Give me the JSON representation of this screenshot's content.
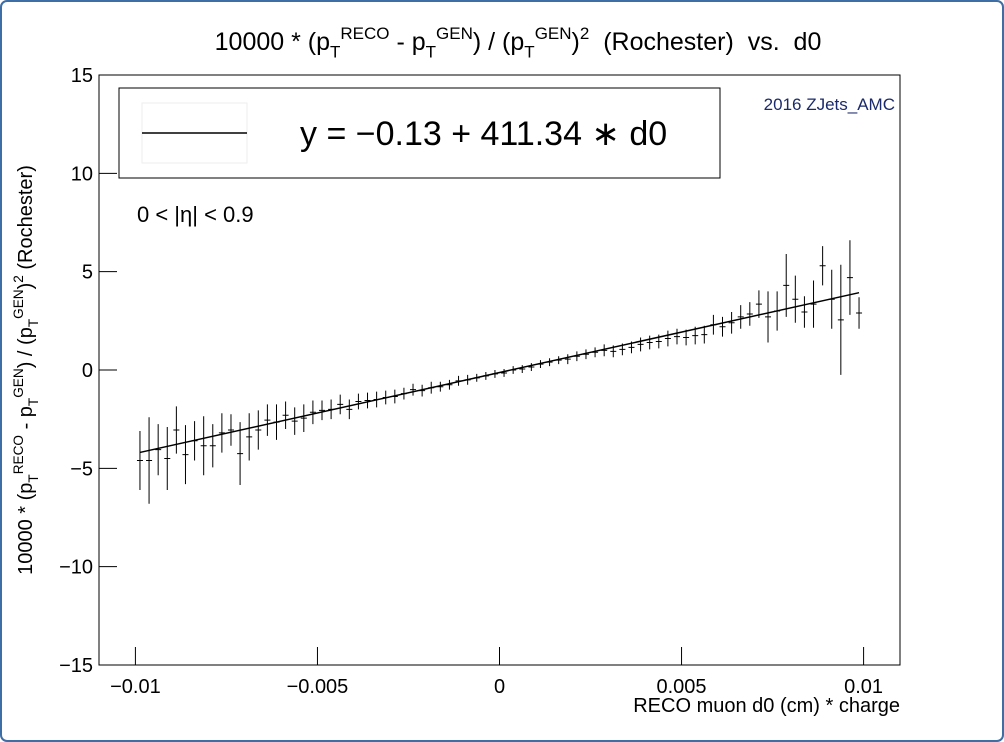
{
  "chart_data": {
    "type": "errorbar",
    "title_parts": [
      {
        "t": "10000 * (p"
      },
      {
        "t": "T",
        "s": "sub"
      },
      {
        "t": "RECO",
        "s": "sup"
      },
      {
        "t": " - p"
      },
      {
        "t": "T",
        "s": "sub"
      },
      {
        "t": "GEN",
        "s": "sup"
      },
      {
        "t": ") / (p"
      },
      {
        "t": "T",
        "s": "sub"
      },
      {
        "t": "GEN",
        "s": "sup"
      },
      {
        "t": ")"
      },
      {
        "t": "2",
        "s": "sup"
      },
      {
        "t": "  (Rochester)  vs.  d0"
      }
    ],
    "y_label_parts": [
      {
        "t": "10000 * (p"
      },
      {
        "t": "T",
        "s": "sub"
      },
      {
        "t": "RECO",
        "s": "sup"
      },
      {
        "t": " - p"
      },
      {
        "t": "T",
        "s": "sub"
      },
      {
        "t": "GEN",
        "s": "sup"
      },
      {
        "t": ") / (p"
      },
      {
        "t": "T",
        "s": "sub"
      },
      {
        "t": "GEN",
        "s": "sup"
      },
      {
        "t": ")"
      },
      {
        "t": "2",
        "s": "sup"
      },
      {
        "t": " (Rochester)"
      }
    ],
    "x_label": "RECO muon d0 (cm) * charge",
    "annotations": [
      "0 < |η| < 0.9",
      "2016 ZJets_AMC"
    ],
    "fit": {
      "label": "y = −0.13 + 411.34 ∗ d0",
      "intercept": -0.13,
      "slope": 411.34,
      "color": "#000000"
    },
    "xlim": [
      -0.011,
      0.011
    ],
    "ylim": [
      -15,
      15
    ],
    "xticks": [
      {
        "value": -0.01,
        "label": "−0.01"
      },
      {
        "value": -0.005,
        "label": "−0.005"
      },
      0,
      0.005,
      0.01
    ],
    "yticks": [
      {
        "value": -15,
        "label": "−15"
      },
      {
        "value": -10,
        "label": "−10"
      },
      {
        "value": -5,
        "label": "−5"
      },
      0,
      5,
      10,
      15
    ],
    "x": [
      -0.009875,
      -0.009625,
      -0.009375,
      -0.009125,
      -0.008875,
      -0.008625,
      -0.008375,
      -0.008125,
      -0.007875,
      -0.007625,
      -0.007375,
      -0.007125,
      -0.006875,
      -0.006625,
      -0.006375,
      -0.006125,
      -0.005875,
      -0.005625,
      -0.005375,
      -0.005125,
      -0.004875,
      -0.004625,
      -0.004375,
      -0.004125,
      -0.003875,
      -0.003625,
      -0.003375,
      -0.003125,
      -0.002875,
      -0.002625,
      -0.002375,
      -0.002125,
      -0.001875,
      -0.001625,
      -0.001375,
      -0.001125,
      -0.000875,
      -0.000625,
      -0.000375,
      -0.000125,
      0.000125,
      0.000375,
      0.000625,
      0.000875,
      0.001125,
      0.001375,
      0.001625,
      0.001875,
      0.002125,
      0.002375,
      0.002625,
      0.002875,
      0.003125,
      0.003375,
      0.003625,
      0.003875,
      0.004125,
      0.004375,
      0.004625,
      0.004875,
      0.005125,
      0.005375,
      0.005625,
      0.005875,
      0.006125,
      0.006375,
      0.006625,
      0.006875,
      0.007125,
      0.007375,
      0.007625,
      0.007875,
      0.008125,
      0.008375,
      0.008625,
      0.008875,
      0.009125,
      0.009375,
      0.009625,
      0.009875
    ],
    "series": [
      {
        "color": "#000000",
        "values": [
          -4.6,
          -4.6,
          -4.05,
          -4.5,
          -3.05,
          -4.3,
          -3.6,
          -3.85,
          -3.85,
          -3.2,
          -3.05,
          -4.25,
          -3.4,
          -3.05,
          -2.55,
          -2.65,
          -2.3,
          -2.6,
          -2.45,
          -2.15,
          -2.05,
          -2.0,
          -1.75,
          -2.0,
          -1.6,
          -1.55,
          -1.5,
          -1.4,
          -1.35,
          -1.2,
          -1.0,
          -1.05,
          -0.9,
          -0.85,
          -0.75,
          -0.55,
          -0.5,
          -0.4,
          -0.3,
          -0.2,
          -0.15,
          0.0,
          0.05,
          0.15,
          0.3,
          0.4,
          0.5,
          0.55,
          0.7,
          0.8,
          0.9,
          1.0,
          0.95,
          1.05,
          1.15,
          1.3,
          1.4,
          1.45,
          1.6,
          1.7,
          1.65,
          1.75,
          1.8,
          2.3,
          2.2,
          2.4,
          2.7,
          2.85,
          3.35,
          2.7,
          3.0,
          4.3,
          3.6,
          2.95,
          3.35,
          5.3,
          3.6,
          2.55,
          4.7,
          2.9
        ],
        "errors": [
          1.5,
          2.2,
          1.3,
          1.6,
          1.2,
          1.5,
          1.0,
          1.5,
          1.1,
          1.0,
          0.8,
          1.6,
          1.2,
          1.0,
          0.8,
          0.9,
          0.7,
          0.7,
          0.7,
          0.6,
          0.5,
          0.5,
          0.5,
          0.5,
          0.4,
          0.4,
          0.4,
          0.35,
          0.35,
          0.3,
          0.3,
          0.3,
          0.3,
          0.25,
          0.25,
          0.25,
          0.25,
          0.2,
          0.2,
          0.2,
          0.2,
          0.2,
          0.2,
          0.2,
          0.2,
          0.2,
          0.2,
          0.25,
          0.25,
          0.25,
          0.25,
          0.3,
          0.3,
          0.3,
          0.3,
          0.35,
          0.35,
          0.35,
          0.4,
          0.4,
          0.4,
          0.45,
          0.45,
          0.5,
          0.5,
          0.55,
          0.6,
          0.6,
          0.7,
          1.3,
          1.0,
          1.6,
          1.2,
          0.8,
          1.2,
          1.0,
          1.5,
          2.8,
          1.9,
          0.8
        ]
      }
    ]
  }
}
